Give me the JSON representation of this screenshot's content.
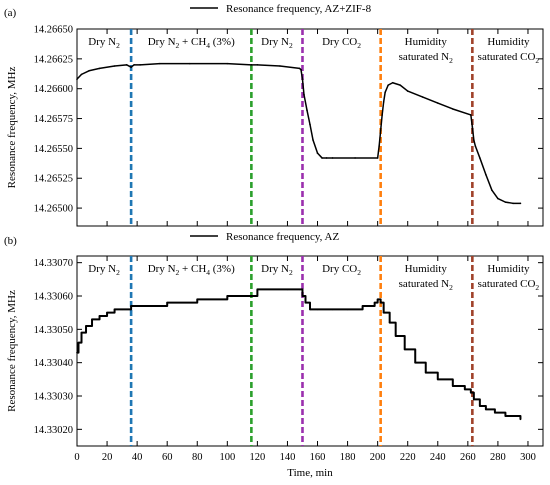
{
  "chart_data": [
    {
      "type": "line",
      "panel_label": "(a)",
      "legend": "Resonance frequency, AZ+ZIF-8",
      "legend_position": "top-center",
      "ylabel": "Resonance frequency, MHz",
      "xlabel": "",
      "xlim": [
        0,
        310
      ],
      "ylim": [
        14.26485,
        14.2665
      ],
      "yticks": [
        "14.26500",
        "14.26525",
        "14.26550",
        "14.26575",
        "14.26600",
        "14.26625",
        "14.26650"
      ],
      "grid": false,
      "series": [
        {
          "name": "Resonance frequency, AZ+ZIF-8",
          "color": "#000000",
          "x": [
            0,
            3,
            8,
            15,
            25,
            33,
            36,
            38,
            42,
            55,
            75,
            100,
            116,
            120,
            135,
            148,
            149,
            150,
            151,
            153,
            155,
            157,
            160,
            163,
            166,
            170,
            185,
            200,
            201,
            202,
            203,
            204,
            205,
            207,
            210,
            215,
            220,
            230,
            240,
            250,
            262,
            263,
            264,
            265,
            268,
            272,
            276,
            280,
            285,
            290,
            295
          ],
          "y": [
            14.26608,
            14.26612,
            14.26615,
            14.26617,
            14.26619,
            14.2662,
            14.26618,
            14.2662,
            14.2662,
            14.26621,
            14.26621,
            14.26621,
            14.2662,
            14.2662,
            14.26619,
            14.26617,
            14.26616,
            14.26608,
            14.26595,
            14.26582,
            14.2657,
            14.26557,
            14.26546,
            14.26542,
            14.26542,
            14.26542,
            14.26542,
            14.26542,
            14.26552,
            14.26565,
            14.26578,
            14.26589,
            14.26597,
            14.26603,
            14.26605,
            14.26603,
            14.26598,
            14.26593,
            14.26588,
            14.26583,
            14.26578,
            14.26568,
            14.26557,
            14.26552,
            14.26542,
            14.26528,
            14.26515,
            14.26508,
            14.26505,
            14.26504,
            14.26504
          ]
        }
      ],
      "markers": [
        {
          "x": 36,
          "color": "#1f77b4"
        },
        {
          "x": 116,
          "color": "#2ca02c"
        },
        {
          "x": 150,
          "color": "#9b2fae"
        },
        {
          "x": 202,
          "color": "#ff7f0e"
        },
        {
          "x": 263,
          "color": "#a0422a"
        }
      ],
      "annotations": [
        {
          "text": "Dry N",
          "sub": "2",
          "rest": "",
          "x": 18,
          "line": 1
        },
        {
          "text": "Dry N",
          "sub": "2",
          "rest": " + CH",
          "sub2": "4",
          "rest2": " (3%)",
          "x": 76,
          "line": 1
        },
        {
          "text": "Dry N",
          "sub": "2",
          "rest": "",
          "x": 133,
          "line": 1
        },
        {
          "text": "Dry CO",
          "sub": "2",
          "rest": "",
          "x": 176,
          "line": 1
        },
        {
          "text": "Humidity",
          "x": 232,
          "line": 1
        },
        {
          "text": "saturated N",
          "sub": "2",
          "rest": "",
          "x": 232,
          "line": 2
        },
        {
          "text": "Humidity",
          "x": 287,
          "line": 1
        },
        {
          "text": "saturated CO",
          "sub": "2",
          "rest": "",
          "x": 287,
          "line": 2
        }
      ]
    },
    {
      "type": "line",
      "panel_label": "(b)",
      "legend": "Resonance frequency, AZ",
      "legend_position": "top-center",
      "ylabel": "Resonance frequency, MHz",
      "xlabel": "Time, min",
      "xlim": [
        0,
        310
      ],
      "ylim": [
        14.33015,
        14.33072
      ],
      "xticks": [
        "0",
        "20",
        "40",
        "60",
        "80",
        "100",
        "120",
        "140",
        "160",
        "180",
        "200",
        "220",
        "240",
        "260",
        "280",
        "300"
      ],
      "yticks": [
        "14.33020",
        "14.33030",
        "14.33040",
        "14.33050",
        "14.33060",
        "14.33070"
      ],
      "grid": false,
      "series": [
        {
          "name": "Resonance frequency, AZ",
          "color": "#000000",
          "x": [
            0,
            1,
            3,
            6,
            10,
            15,
            20,
            25,
            30,
            36,
            40,
            60,
            80,
            100,
            115,
            120,
            140,
            148,
            150,
            152,
            155,
            160,
            170,
            180,
            190,
            198,
            200,
            202,
            204,
            208,
            212,
            218,
            225,
            232,
            240,
            250,
            258,
            262,
            264,
            268,
            272,
            278,
            285,
            290,
            295
          ],
          "y": [
            14.33043,
            14.33046,
            14.33049,
            14.33051,
            14.33053,
            14.33054,
            14.33055,
            14.33056,
            14.33056,
            14.33057,
            14.33057,
            14.33058,
            14.33059,
            14.3306,
            14.3306,
            14.33062,
            14.33062,
            14.33062,
            14.3306,
            14.33058,
            14.33056,
            14.33056,
            14.33056,
            14.33056,
            14.33057,
            14.33058,
            14.33059,
            14.33058,
            14.33055,
            14.33052,
            14.33048,
            14.33044,
            14.3304,
            14.33037,
            14.33035,
            14.33033,
            14.33032,
            14.33031,
            14.33029,
            14.33027,
            14.33026,
            14.33025,
            14.33024,
            14.33024,
            14.33023
          ]
        }
      ],
      "markers": [
        {
          "x": 36,
          "color": "#1f77b4"
        },
        {
          "x": 116,
          "color": "#2ca02c"
        },
        {
          "x": 150,
          "color": "#9b2fae"
        },
        {
          "x": 202,
          "color": "#ff7f0e"
        },
        {
          "x": 263,
          "color": "#a0422a"
        }
      ],
      "annotations": [
        {
          "text": "Dry N",
          "sub": "2",
          "rest": "",
          "x": 18,
          "line": 1
        },
        {
          "text": "Dry N",
          "sub": "2",
          "rest": " + CH",
          "sub2": "4",
          "rest2": " (3%)",
          "x": 76,
          "line": 1
        },
        {
          "text": "Dry N",
          "sub": "2",
          "rest": "",
          "x": 133,
          "line": 1
        },
        {
          "text": "Dry CO",
          "sub": "2",
          "rest": "",
          "x": 176,
          "line": 1
        },
        {
          "text": "Humidity",
          "x": 232,
          "line": 1
        },
        {
          "text": "saturated N",
          "sub": "2",
          "rest": "",
          "x": 232,
          "line": 2
        },
        {
          "text": "Humidity",
          "x": 287,
          "line": 1
        },
        {
          "text": "saturated CO",
          "sub": "2",
          "rest": "",
          "x": 287,
          "line": 2
        }
      ]
    }
  ]
}
